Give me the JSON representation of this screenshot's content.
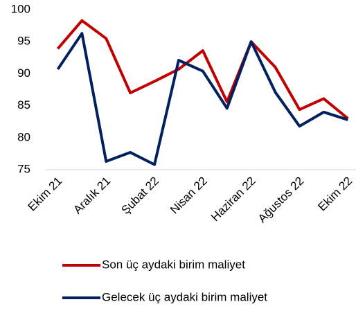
{
  "chart_data": {
    "type": "line",
    "categories": [
      "Ekim 21",
      null,
      "Aralık 21",
      null,
      "Şubat 22",
      null,
      "Nisan 22",
      null,
      "Haziran 22",
      null,
      "Ağustos 22",
      null,
      "Ekim 22"
    ],
    "series": [
      {
        "name": "Son üç aydaki birim maliyet",
        "color": "#c00000",
        "values": [
          93.9,
          98.3,
          95.5,
          87.0,
          88.8,
          90.7,
          93.6,
          85.6,
          95.0,
          91.0,
          84.4,
          86.1,
          83.0
        ]
      },
      {
        "name": "Gelecek üç aydaki birim maliyet",
        "color": "#002060",
        "values": [
          90.7,
          96.3,
          76.3,
          77.7,
          75.8,
          92.1,
          90.4,
          84.6,
          95.0,
          87.1,
          81.8,
          84.0,
          82.8
        ]
      }
    ],
    "ylim": [
      75,
      100
    ],
    "yticks": [
      75,
      80,
      85,
      90,
      95,
      100
    ],
    "grid": false
  }
}
